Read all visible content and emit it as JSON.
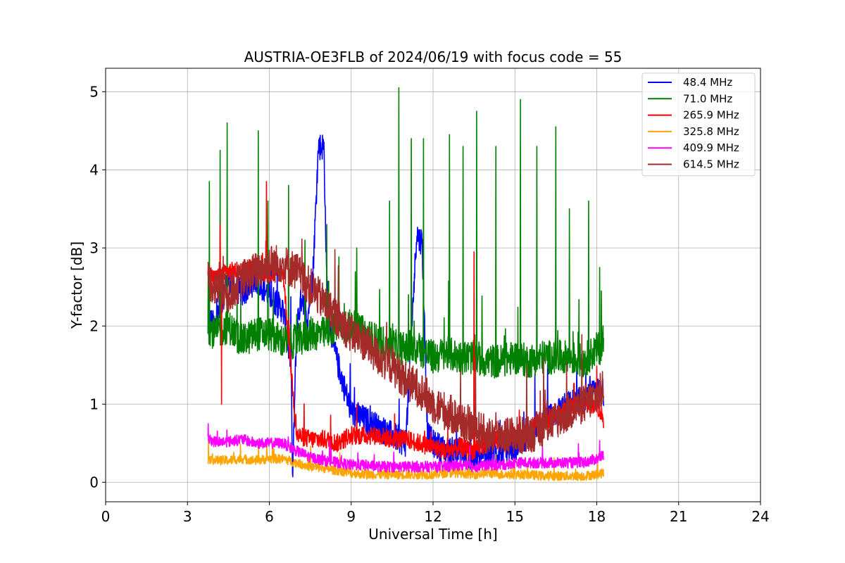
{
  "chart_data": {
    "type": "line",
    "title": "AUSTRIA-OE3FLB of 2024/06/19 with focus code = 55",
    "xlabel": "Universal Time [h]",
    "ylabel": "Y-factor [dB]",
    "xlim": [
      0,
      24
    ],
    "ylim": [
      -0.25,
      5.3
    ],
    "xticks": [
      0,
      3,
      6,
      9,
      12,
      15,
      18,
      21,
      24
    ],
    "xtick_labels": [
      "0",
      "3",
      "6",
      "9",
      "12",
      "15",
      "18",
      "21",
      "24"
    ],
    "yticks": [
      0,
      1,
      2,
      3,
      4,
      5
    ],
    "ytick_labels": [
      "0",
      "1",
      "2",
      "3",
      "4",
      "5"
    ],
    "grid": true,
    "legend_position": "top-right",
    "series": [
      {
        "name": " 48.4 MHz",
        "color": "#0000ff",
        "x": [
          3.75,
          4.0,
          4.5,
          5.0,
          5.5,
          6.0,
          6.5,
          6.8,
          6.85,
          7.0,
          7.2,
          7.4,
          7.6,
          7.8,
          8.0,
          8.1,
          8.3,
          8.6,
          9.0,
          9.5,
          10.0,
          10.5,
          11.0,
          11.4,
          11.5,
          11.6,
          11.8,
          12.0,
          12.5,
          13.0,
          13.5,
          14.0,
          14.5,
          15.0,
          15.5,
          16.0,
          16.5,
          17.0,
          17.5,
          18.0,
          18.25
        ],
        "y": [
          2.1,
          2.0,
          2.6,
          2.4,
          2.6,
          2.4,
          2.2,
          1.5,
          0.0,
          2.0,
          2.4,
          2.1,
          2.7,
          4.3,
          4.3,
          2.6,
          1.8,
          1.4,
          0.9,
          0.8,
          0.7,
          0.6,
          0.5,
          3.2,
          3.1,
          3.1,
          0.6,
          0.5,
          0.4,
          0.4,
          0.3,
          0.35,
          0.4,
          0.45,
          0.6,
          0.8,
          0.9,
          1.0,
          1.05,
          1.15,
          1.15
        ]
      },
      {
        "name": " 71.0 MHz",
        "color": "#008000",
        "x": [
          3.75,
          4.0,
          4.5,
          5.0,
          5.5,
          6.0,
          6.5,
          7.0,
          7.5,
          8.0,
          8.5,
          9.0,
          9.5,
          10.0,
          10.5,
          11.0,
          11.5,
          12.0,
          12.5,
          13.0,
          13.5,
          14.0,
          14.5,
          15.0,
          15.5,
          16.0,
          16.5,
          17.0,
          17.5,
          18.0,
          18.25
        ],
        "y": [
          2.0,
          1.9,
          2.0,
          1.8,
          1.9,
          1.9,
          1.8,
          1.8,
          1.9,
          1.9,
          2.0,
          2.0,
          1.9,
          1.8,
          1.75,
          1.7,
          1.7,
          1.6,
          1.65,
          1.6,
          1.6,
          1.55,
          1.55,
          1.6,
          1.55,
          1.6,
          1.6,
          1.6,
          1.55,
          1.7,
          1.75
        ],
        "spikes": [
          [
            3.8,
            3.85
          ],
          [
            4.2,
            4.25
          ],
          [
            4.45,
            4.6
          ],
          [
            5.6,
            4.5
          ],
          [
            5.95,
            3.6
          ],
          [
            6.7,
            3.8
          ],
          [
            7.3,
            3.1
          ],
          [
            8.1,
            3.3
          ],
          [
            9.2,
            3.0
          ],
          [
            10.4,
            3.6
          ],
          [
            10.75,
            5.05
          ],
          [
            11.2,
            4.4
          ],
          [
            11.65,
            4.4
          ],
          [
            12.6,
            4.45
          ],
          [
            13.1,
            4.3
          ],
          [
            13.6,
            4.75
          ],
          [
            14.3,
            4.3
          ],
          [
            15.2,
            4.9
          ],
          [
            15.8,
            4.3
          ],
          [
            16.5,
            4.55
          ],
          [
            17.0,
            3.5
          ],
          [
            17.7,
            3.6
          ],
          [
            18.1,
            2.75
          ]
        ]
      },
      {
        "name": "265.9 MHz",
        "color": "#ff0000",
        "x": [
          3.75,
          4.0,
          4.5,
          5.0,
          5.5,
          6.0,
          6.5,
          7.0,
          7.5,
          8.0,
          8.5,
          9.0,
          9.5,
          10.0,
          10.5,
          11.0,
          11.5,
          12.0,
          12.5,
          13.0,
          13.5,
          14.0,
          14.5,
          15.0,
          15.5,
          16.0,
          16.5,
          17.0,
          17.5,
          18.0,
          18.25
        ],
        "y": [
          2.7,
          2.6,
          2.7,
          2.7,
          2.75,
          2.65,
          2.7,
          0.6,
          0.55,
          0.55,
          0.5,
          0.6,
          0.6,
          0.6,
          0.55,
          0.55,
          0.5,
          0.45,
          0.4,
          0.45,
          0.4,
          0.5,
          0.55,
          0.6,
          0.7,
          0.8,
          0.85,
          0.95,
          1.0,
          1.0,
          0.8
        ],
        "spikes": [
          [
            4.2,
            3.3
          ],
          [
            4.25,
            1.0
          ],
          [
            5.9,
            3.85
          ],
          [
            13.5,
            2.95
          ]
        ]
      },
      {
        "name": "325.8 MHz",
        "color": "#ffa500",
        "x": [
          3.75,
          4.0,
          4.5,
          5.0,
          5.5,
          6.0,
          6.5,
          7.0,
          7.5,
          8.0,
          8.5,
          9.0,
          9.5,
          10.0,
          10.5,
          11.0,
          11.5,
          12.0,
          12.5,
          13.0,
          13.5,
          14.0,
          14.5,
          15.0,
          15.5,
          16.0,
          16.5,
          17.0,
          17.5,
          18.0,
          18.25
        ],
        "y": [
          0.3,
          0.28,
          0.28,
          0.3,
          0.28,
          0.3,
          0.3,
          0.25,
          0.2,
          0.18,
          0.15,
          0.12,
          0.1,
          0.1,
          0.1,
          0.1,
          0.1,
          0.1,
          0.12,
          0.12,
          0.1,
          0.12,
          0.1,
          0.1,
          0.1,
          0.08,
          0.08,
          0.08,
          0.08,
          0.1,
          0.12
        ]
      },
      {
        "name": "409.9 MHz",
        "color": "#ff00ff",
        "x": [
          3.75,
          4.0,
          4.5,
          5.0,
          5.5,
          6.0,
          6.5,
          7.0,
          7.5,
          8.0,
          8.5,
          9.0,
          9.5,
          10.0,
          10.5,
          11.0,
          11.5,
          12.0,
          12.5,
          13.0,
          13.5,
          14.0,
          14.5,
          15.0,
          15.5,
          16.0,
          16.5,
          17.0,
          17.5,
          18.0,
          18.25
        ],
        "y": [
          0.55,
          0.52,
          0.52,
          0.55,
          0.5,
          0.5,
          0.5,
          0.4,
          0.32,
          0.28,
          0.25,
          0.22,
          0.22,
          0.2,
          0.2,
          0.2,
          0.2,
          0.2,
          0.2,
          0.22,
          0.2,
          0.22,
          0.22,
          0.25,
          0.25,
          0.25,
          0.25,
          0.25,
          0.25,
          0.3,
          0.35
        ]
      },
      {
        "name": "614.5 MHz",
        "color": "#a52a2a",
        "x": [
          3.75,
          4.0,
          4.5,
          5.0,
          5.5,
          6.0,
          6.5,
          7.0,
          7.5,
          8.0,
          8.5,
          9.0,
          9.5,
          10.0,
          10.5,
          11.0,
          11.5,
          12.0,
          12.5,
          13.0,
          13.5,
          14.0,
          14.5,
          15.0,
          15.5,
          16.0,
          16.5,
          17.0,
          17.5,
          18.0,
          18.25
        ],
        "y": [
          2.6,
          2.5,
          2.4,
          2.6,
          2.7,
          2.8,
          2.8,
          2.7,
          2.5,
          2.3,
          2.1,
          1.9,
          1.8,
          1.6,
          1.5,
          1.3,
          1.2,
          1.0,
          0.9,
          0.8,
          0.7,
          0.6,
          0.6,
          0.6,
          0.6,
          0.7,
          0.8,
          0.9,
          1.0,
          1.1,
          1.2
        ]
      }
    ]
  }
}
